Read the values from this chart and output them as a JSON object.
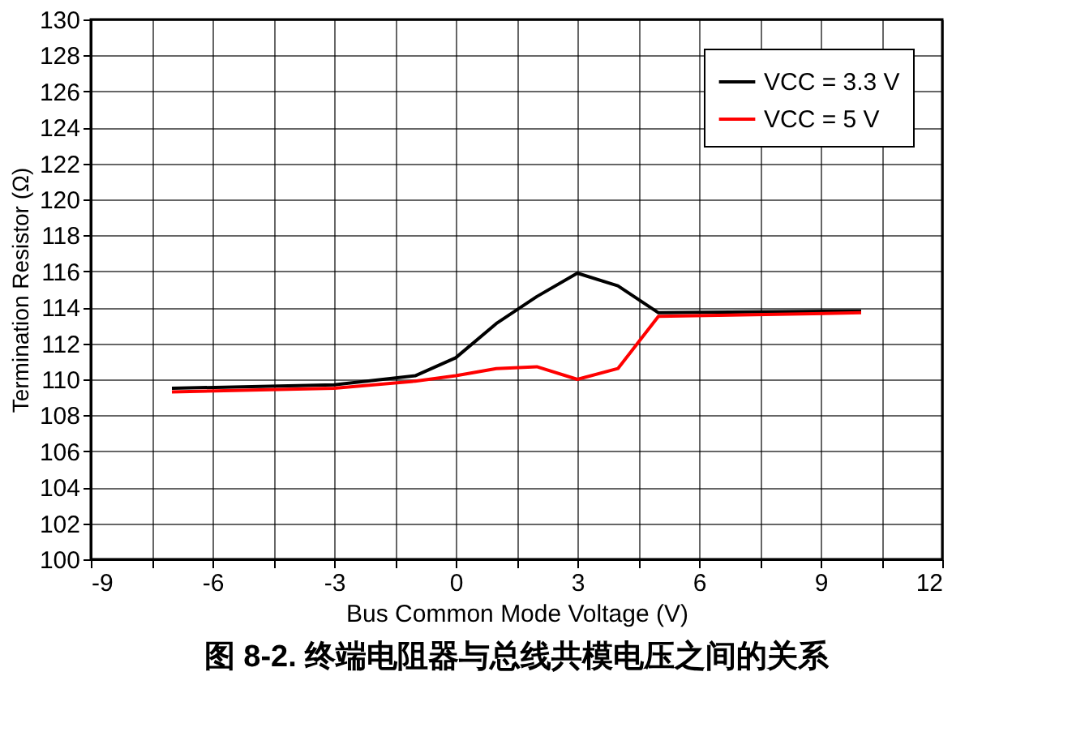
{
  "chart_data": {
    "type": "line",
    "title": "图 8-2. 终端电阻器与总线共模电压之间的关系",
    "xlabel": "Bus Common Mode Voltage (V)",
    "ylabel": "Termination Resistor (Ω)",
    "xlim": [
      -9,
      12
    ],
    "ylim": [
      100,
      130
    ],
    "xticks": [
      -9,
      {
        "value": -7.5,
        "label": null
      },
      -6,
      {
        "value": -4.5,
        "label": null
      },
      -3,
      {
        "value": -1.5,
        "label": null
      },
      0,
      {
        "value": 1.5,
        "label": null
      },
      3,
      {
        "value": 4.5,
        "label": null
      },
      6,
      {
        "value": 7.5,
        "label": null
      },
      9,
      {
        "value": 10.5,
        "label": null
      },
      12
    ],
    "yticks": [
      100,
      102,
      104,
      106,
      108,
      110,
      112,
      114,
      116,
      118,
      120,
      122,
      124,
      126,
      128,
      130
    ],
    "grid": true,
    "legend": "top right",
    "marker": "none",
    "line_style": "solid",
    "series": [
      {
        "name": "VCC = 3.3 V",
        "color": "#000000",
        "x": [
          -7,
          -3,
          -1,
          0,
          1,
          2,
          3,
          4,
          5,
          10
        ],
        "values": [
          109.5,
          109.7,
          110.2,
          111.2,
          113.1,
          114.6,
          115.9,
          115.2,
          113.7,
          113.8
        ]
      },
      {
        "name": "VCC = 5 V",
        "color": "#ff0000",
        "x": [
          -7,
          -3,
          -1,
          0,
          1,
          2,
          3,
          4,
          5,
          10
        ],
        "values": [
          109.3,
          109.5,
          109.9,
          110.2,
          110.6,
          110.7,
          110.0,
          110.6,
          113.5,
          113.7
        ]
      }
    ]
  }
}
